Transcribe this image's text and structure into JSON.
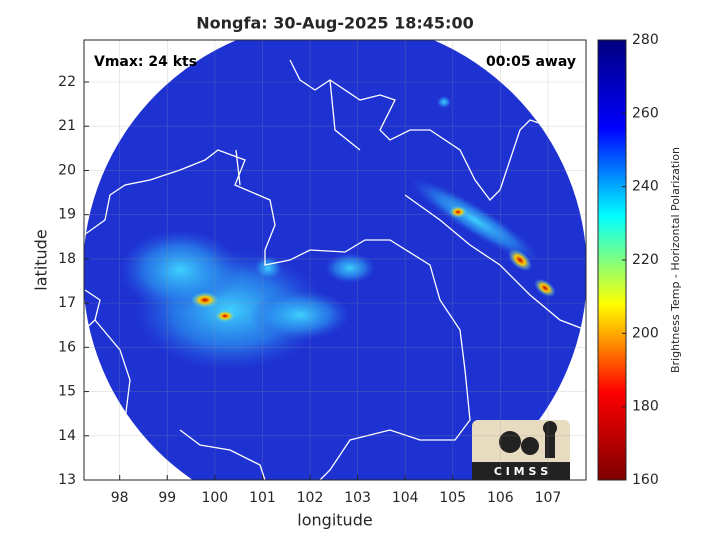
{
  "chart_data": {
    "type": "swath-map",
    "title": "Nongfa: 30-Aug-2025 18:45:00",
    "x_label": "longitude",
    "y_label": "latitude",
    "annotations": [
      "Vmax: 24 kts",
      "00:05 away"
    ],
    "xlim": [
      97.25,
      107.8
    ],
    "xticks": [
      98,
      99,
      100,
      101,
      102,
      103,
      104,
      105,
      106,
      107
    ],
    "ylim": [
      13,
      22.95
    ],
    "yticks": [
      13,
      14,
      15,
      16,
      17,
      18,
      19,
      20,
      21,
      22
    ],
    "grid": true,
    "colorbar": {
      "label": "Brightness Temp - Horizontal Polarization",
      "lim": [
        160,
        280
      ],
      "ticks": [
        160,
        180,
        200,
        220,
        240,
        260,
        280
      ],
      "colormap": [
        "#7f0000",
        "#ff0000",
        "#ffff00",
        "#00ffff",
        "#0000ff",
        "#00007f"
      ]
    },
    "logo_text": "C I M S S"
  }
}
